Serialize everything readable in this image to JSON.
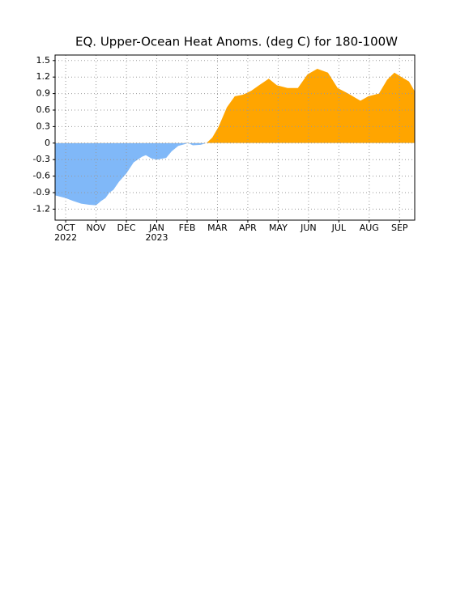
{
  "chart_data": {
    "type": "area",
    "title": "EQ. Upper-Ocean Heat Anoms. (deg C) for 180-100W",
    "x": [
      -0.35,
      0,
      0.24,
      0.51,
      0.77,
      1.0,
      1.17,
      1.31,
      1.44,
      1.57,
      1.76,
      2.0,
      2.24,
      2.51,
      2.64,
      2.83,
      3.0,
      3.31,
      3.49,
      3.71,
      3.92,
      4.03,
      4.19,
      4.45,
      4.64,
      4.83,
      5.04,
      5.31,
      5.57,
      5.84,
      6.11,
      6.37,
      6.69,
      6.96,
      7.31,
      7.65,
      7.97,
      8.29,
      8.64,
      8.96,
      9.31,
      9.71,
      9.97,
      10.32,
      10.59,
      10.83,
      11.12,
      11.31,
      11.49
    ],
    "values": [
      -0.95,
      -1.0,
      -1.05,
      -1.1,
      -1.12,
      -1.13,
      -1.05,
      -1.0,
      -0.9,
      -0.85,
      -0.7,
      -0.55,
      -0.35,
      -0.25,
      -0.22,
      -0.28,
      -0.3,
      -0.27,
      -0.15,
      -0.05,
      -0.02,
      0,
      -0.04,
      -0.03,
      0.0,
      0.1,
      0.3,
      0.65,
      0.85,
      0.88,
      0.95,
      1.05,
      1.17,
      1.05,
      1.0,
      1.0,
      1.25,
      1.35,
      1.28,
      1.0,
      0.9,
      0.77,
      0.85,
      0.9,
      1.15,
      1.28,
      1.18,
      1.12,
      0.95
    ],
    "positive_color": "#ffa500",
    "negative_color": "#80b8f8",
    "xlim": [
      -0.35,
      11.5
    ],
    "xticks": [
      {
        "value": 0,
        "label": "OCT"
      },
      {
        "value": 1,
        "label": "NOV"
      },
      {
        "value": 2,
        "label": "DEC"
      },
      {
        "value": 3,
        "label": "JAN"
      },
      {
        "value": 4,
        "label": "FEB"
      },
      {
        "value": 5,
        "label": "MAR"
      },
      {
        "value": 6,
        "label": "APR"
      },
      {
        "value": 7,
        "label": "MAY"
      },
      {
        "value": 8,
        "label": "JUN"
      },
      {
        "value": 9,
        "label": "JUL"
      },
      {
        "value": 10,
        "label": "AUG"
      },
      {
        "value": 11,
        "label": "SEP"
      }
    ],
    "year_labels": [
      {
        "value": 0,
        "label": "2022"
      },
      {
        "value": 3,
        "label": "2023"
      }
    ],
    "ylim": [
      -1.4,
      1.6
    ],
    "yticks": [
      1.5,
      1.2,
      0.9,
      0.6,
      0.3,
      0,
      -0.3,
      -0.6,
      -0.9,
      -1.2
    ],
    "grid": true
  }
}
